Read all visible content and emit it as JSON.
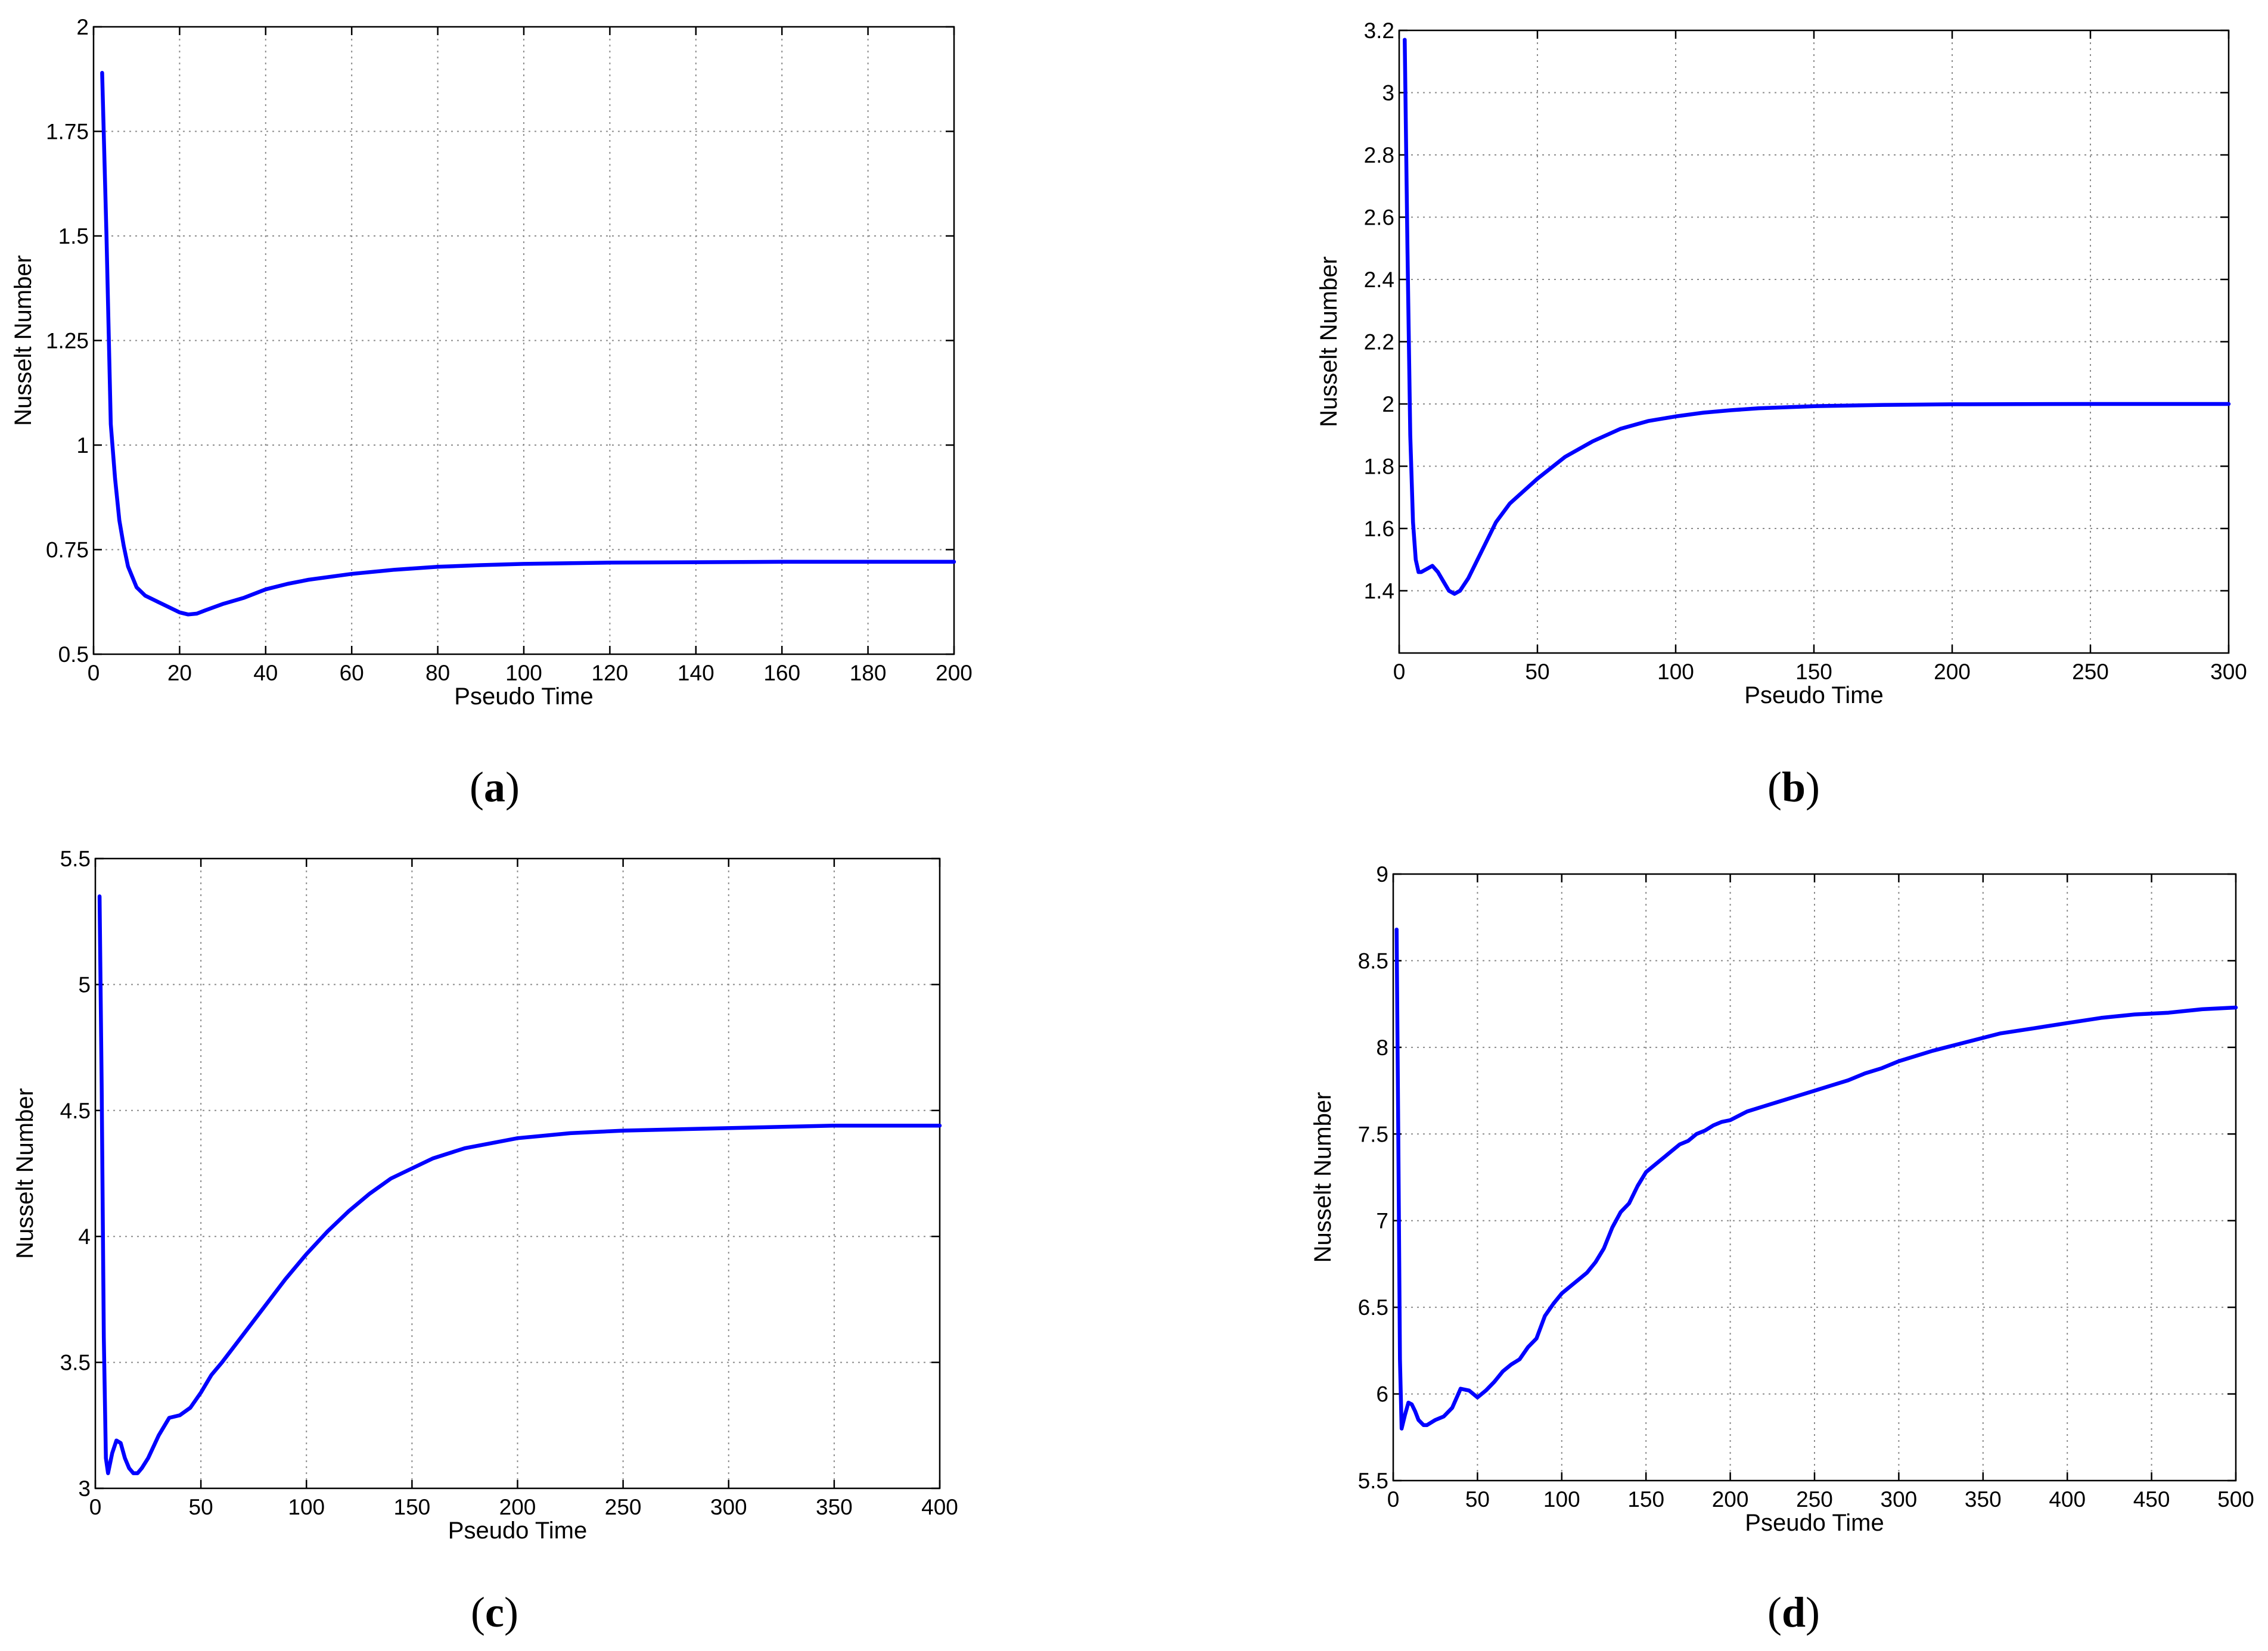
{
  "style": {
    "line_color": "#0000ff",
    "grid_color": "#8c8c8c",
    "axis_color": "#000000"
  },
  "chart_data": [
    {
      "panel": "a",
      "caption": {
        "open": "(",
        "letter": "a",
        "close": ")"
      },
      "type": "line",
      "xlabel": "Pseudo Time",
      "ylabel": "Nusselt Number",
      "xlim": [
        0,
        200
      ],
      "ylim": [
        0.5,
        2
      ],
      "xticks": [
        0,
        20,
        40,
        60,
        80,
        100,
        120,
        140,
        160,
        180,
        200
      ],
      "yticks": [
        0.5,
        0.75,
        1,
        1.25,
        1.5,
        1.75,
        2
      ],
      "ytick_labels": [
        "0.5",
        "0.75",
        "1",
        "1.25",
        "1.5",
        "1.75",
        "2"
      ],
      "grid": true,
      "series": [
        {
          "x": [
            2,
            3,
            4,
            5,
            6,
            7,
            8,
            10,
            12,
            15,
            18,
            20,
            22,
            24,
            26,
            30,
            35,
            40,
            45,
            50,
            60,
            70,
            80,
            90,
            100,
            120,
            140,
            160,
            180,
            200
          ],
          "y": [
            1.89,
            1.5,
            1.05,
            0.92,
            0.82,
            0.76,
            0.71,
            0.66,
            0.64,
            0.625,
            0.61,
            0.6,
            0.595,
            0.597,
            0.605,
            0.62,
            0.635,
            0.655,
            0.668,
            0.678,
            0.692,
            0.702,
            0.709,
            0.713,
            0.716,
            0.719,
            0.72,
            0.721,
            0.721,
            0.721
          ]
        }
      ]
    },
    {
      "panel": "b",
      "caption": {
        "open": "(",
        "letter": "b",
        "close": ")"
      },
      "type": "line",
      "xlabel": "Pseudo Time",
      "ylabel": "Nusselt Number",
      "xlim": [
        0,
        300
      ],
      "ylim": [
        1.2,
        3.2
      ],
      "xticks": [
        0,
        50,
        100,
        150,
        200,
        250,
        300
      ],
      "yticks": [
        1.4,
        1.6,
        1.8,
        2,
        2.2,
        2.4,
        2.6,
        2.8,
        3,
        3.2
      ],
      "ytick_labels": [
        "1.4",
        "1.6",
        "1.8",
        "2",
        "2.2",
        "2.4",
        "2.6",
        "2.8",
        "3",
        "3.2"
      ],
      "grid": true,
      "series": [
        {
          "x": [
            2,
            3,
            4,
            5,
            6,
            7,
            8,
            10,
            12,
            14,
            16,
            18,
            20,
            22,
            25,
            30,
            35,
            40,
            50,
            60,
            70,
            80,
            90,
            100,
            110,
            120,
            130,
            150,
            175,
            200,
            250,
            300
          ],
          "y": [
            3.17,
            2.5,
            1.9,
            1.62,
            1.5,
            1.46,
            1.46,
            1.47,
            1.48,
            1.46,
            1.43,
            1.4,
            1.39,
            1.4,
            1.44,
            1.53,
            1.62,
            1.68,
            1.76,
            1.83,
            1.88,
            1.92,
            1.945,
            1.96,
            1.972,
            1.98,
            1.986,
            1.993,
            1.997,
            1.999,
            2.0,
            2.0
          ]
        }
      ]
    },
    {
      "panel": "c",
      "caption": {
        "open": "(",
        "letter": "c",
        "close": ")"
      },
      "type": "line",
      "xlabel": "Pseudo Time",
      "ylabel": "Nusselt Number",
      "xlim": [
        0,
        400
      ],
      "ylim": [
        3,
        5.5
      ],
      "xticks": [
        0,
        50,
        100,
        150,
        200,
        250,
        300,
        350,
        400
      ],
      "yticks": [
        3,
        3.5,
        4,
        4.5,
        5,
        5.5
      ],
      "ytick_labels": [
        "3",
        "3.5",
        "4",
        "4.5",
        "5",
        "5.5"
      ],
      "grid": true,
      "series": [
        {
          "x": [
            2,
            3,
            4,
            5,
            6,
            8,
            10,
            12,
            14,
            16,
            18,
            20,
            22,
            25,
            30,
            35,
            40,
            45,
            50,
            55,
            60,
            70,
            80,
            90,
            100,
            110,
            120,
            130,
            140,
            150,
            160,
            175,
            200,
            225,
            250,
            300,
            350,
            400
          ],
          "y": [
            5.35,
            4.6,
            3.6,
            3.12,
            3.06,
            3.14,
            3.19,
            3.18,
            3.12,
            3.08,
            3.06,
            3.06,
            3.08,
            3.12,
            3.21,
            3.28,
            3.29,
            3.32,
            3.38,
            3.45,
            3.5,
            3.61,
            3.72,
            3.83,
            3.93,
            4.02,
            4.1,
            4.17,
            4.23,
            4.27,
            4.31,
            4.35,
            4.39,
            4.41,
            4.42,
            4.43,
            4.44,
            4.44
          ]
        }
      ]
    },
    {
      "panel": "d",
      "caption": {
        "open": "(",
        "letter": "d",
        "close": ")"
      },
      "type": "line",
      "xlabel": "Pseudo Time",
      "ylabel": "Nusselt Number",
      "xlim": [
        0,
        500
      ],
      "ylim": [
        5.5,
        9
      ],
      "xticks": [
        0,
        50,
        100,
        150,
        200,
        250,
        300,
        350,
        400,
        450,
        500
      ],
      "yticks": [
        5.5,
        6,
        6.5,
        7,
        7.5,
        8,
        8.5,
        9
      ],
      "ytick_labels": [
        "5.5",
        "6",
        "6.5",
        "7",
        "7.5",
        "8",
        "8.5",
        "9"
      ],
      "grid": true,
      "series": [
        {
          "x": [
            2,
            3,
            4,
            5,
            7,
            9,
            11,
            13,
            15,
            18,
            20,
            25,
            30,
            35,
            40,
            45,
            50,
            55,
            60,
            65,
            70,
            75,
            80,
            85,
            90,
            95,
            100,
            105,
            110,
            115,
            120,
            125,
            130,
            135,
            140,
            145,
            150,
            155,
            160,
            165,
            170,
            175,
            180,
            185,
            190,
            195,
            200,
            210,
            220,
            230,
            240,
            250,
            260,
            270,
            280,
            290,
            300,
            320,
            340,
            360,
            380,
            400,
            420,
            440,
            460,
            480,
            500
          ],
          "y": [
            8.68,
            7.5,
            6.2,
            5.8,
            5.88,
            5.95,
            5.94,
            5.9,
            5.85,
            5.82,
            5.82,
            5.85,
            5.87,
            5.92,
            6.03,
            6.02,
            5.98,
            6.02,
            6.07,
            6.13,
            6.17,
            6.2,
            6.27,
            6.32,
            6.45,
            6.52,
            6.58,
            6.62,
            6.66,
            6.7,
            6.76,
            6.84,
            6.96,
            7.05,
            7.1,
            7.2,
            7.28,
            7.32,
            7.36,
            7.4,
            7.44,
            7.46,
            7.5,
            7.52,
            7.55,
            7.57,
            7.58,
            7.63,
            7.66,
            7.69,
            7.72,
            7.75,
            7.78,
            7.81,
            7.85,
            7.88,
            7.92,
            7.98,
            8.03,
            8.08,
            8.11,
            8.14,
            8.17,
            8.19,
            8.2,
            8.22,
            8.23
          ]
        }
      ]
    }
  ]
}
